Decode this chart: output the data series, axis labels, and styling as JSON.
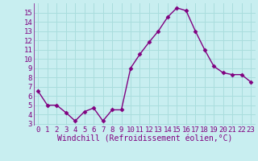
{
  "x": [
    0,
    1,
    2,
    3,
    4,
    5,
    6,
    7,
    8,
    9,
    10,
    11,
    12,
    13,
    14,
    15,
    16,
    17,
    18,
    19,
    20,
    21,
    22,
    23
  ],
  "y": [
    6.5,
    5.0,
    5.0,
    4.2,
    3.3,
    4.3,
    4.7,
    3.3,
    4.5,
    4.5,
    9.0,
    10.5,
    11.8,
    13.0,
    14.5,
    15.5,
    15.2,
    13.0,
    11.0,
    9.2,
    8.5,
    8.3,
    8.3,
    7.5
  ],
  "line_color": "#800080",
  "marker_color": "#800080",
  "bg_color": "#c8eef0",
  "grid_color": "#aadddd",
  "xlabel": "Windchill (Refroidissement éolien,°C)",
  "xlim": [
    -0.5,
    23.5
  ],
  "ylim": [
    2.8,
    16.0
  ],
  "yticks": [
    3,
    4,
    5,
    6,
    7,
    8,
    9,
    10,
    11,
    12,
    13,
    14,
    15
  ],
  "xticks": [
    0,
    1,
    2,
    3,
    4,
    5,
    6,
    7,
    8,
    9,
    10,
    11,
    12,
    13,
    14,
    15,
    16,
    17,
    18,
    19,
    20,
    21,
    22,
    23
  ],
  "xlabel_fontsize": 7,
  "tick_fontsize": 6.5,
  "line_width": 1.0,
  "marker_size": 2.5
}
